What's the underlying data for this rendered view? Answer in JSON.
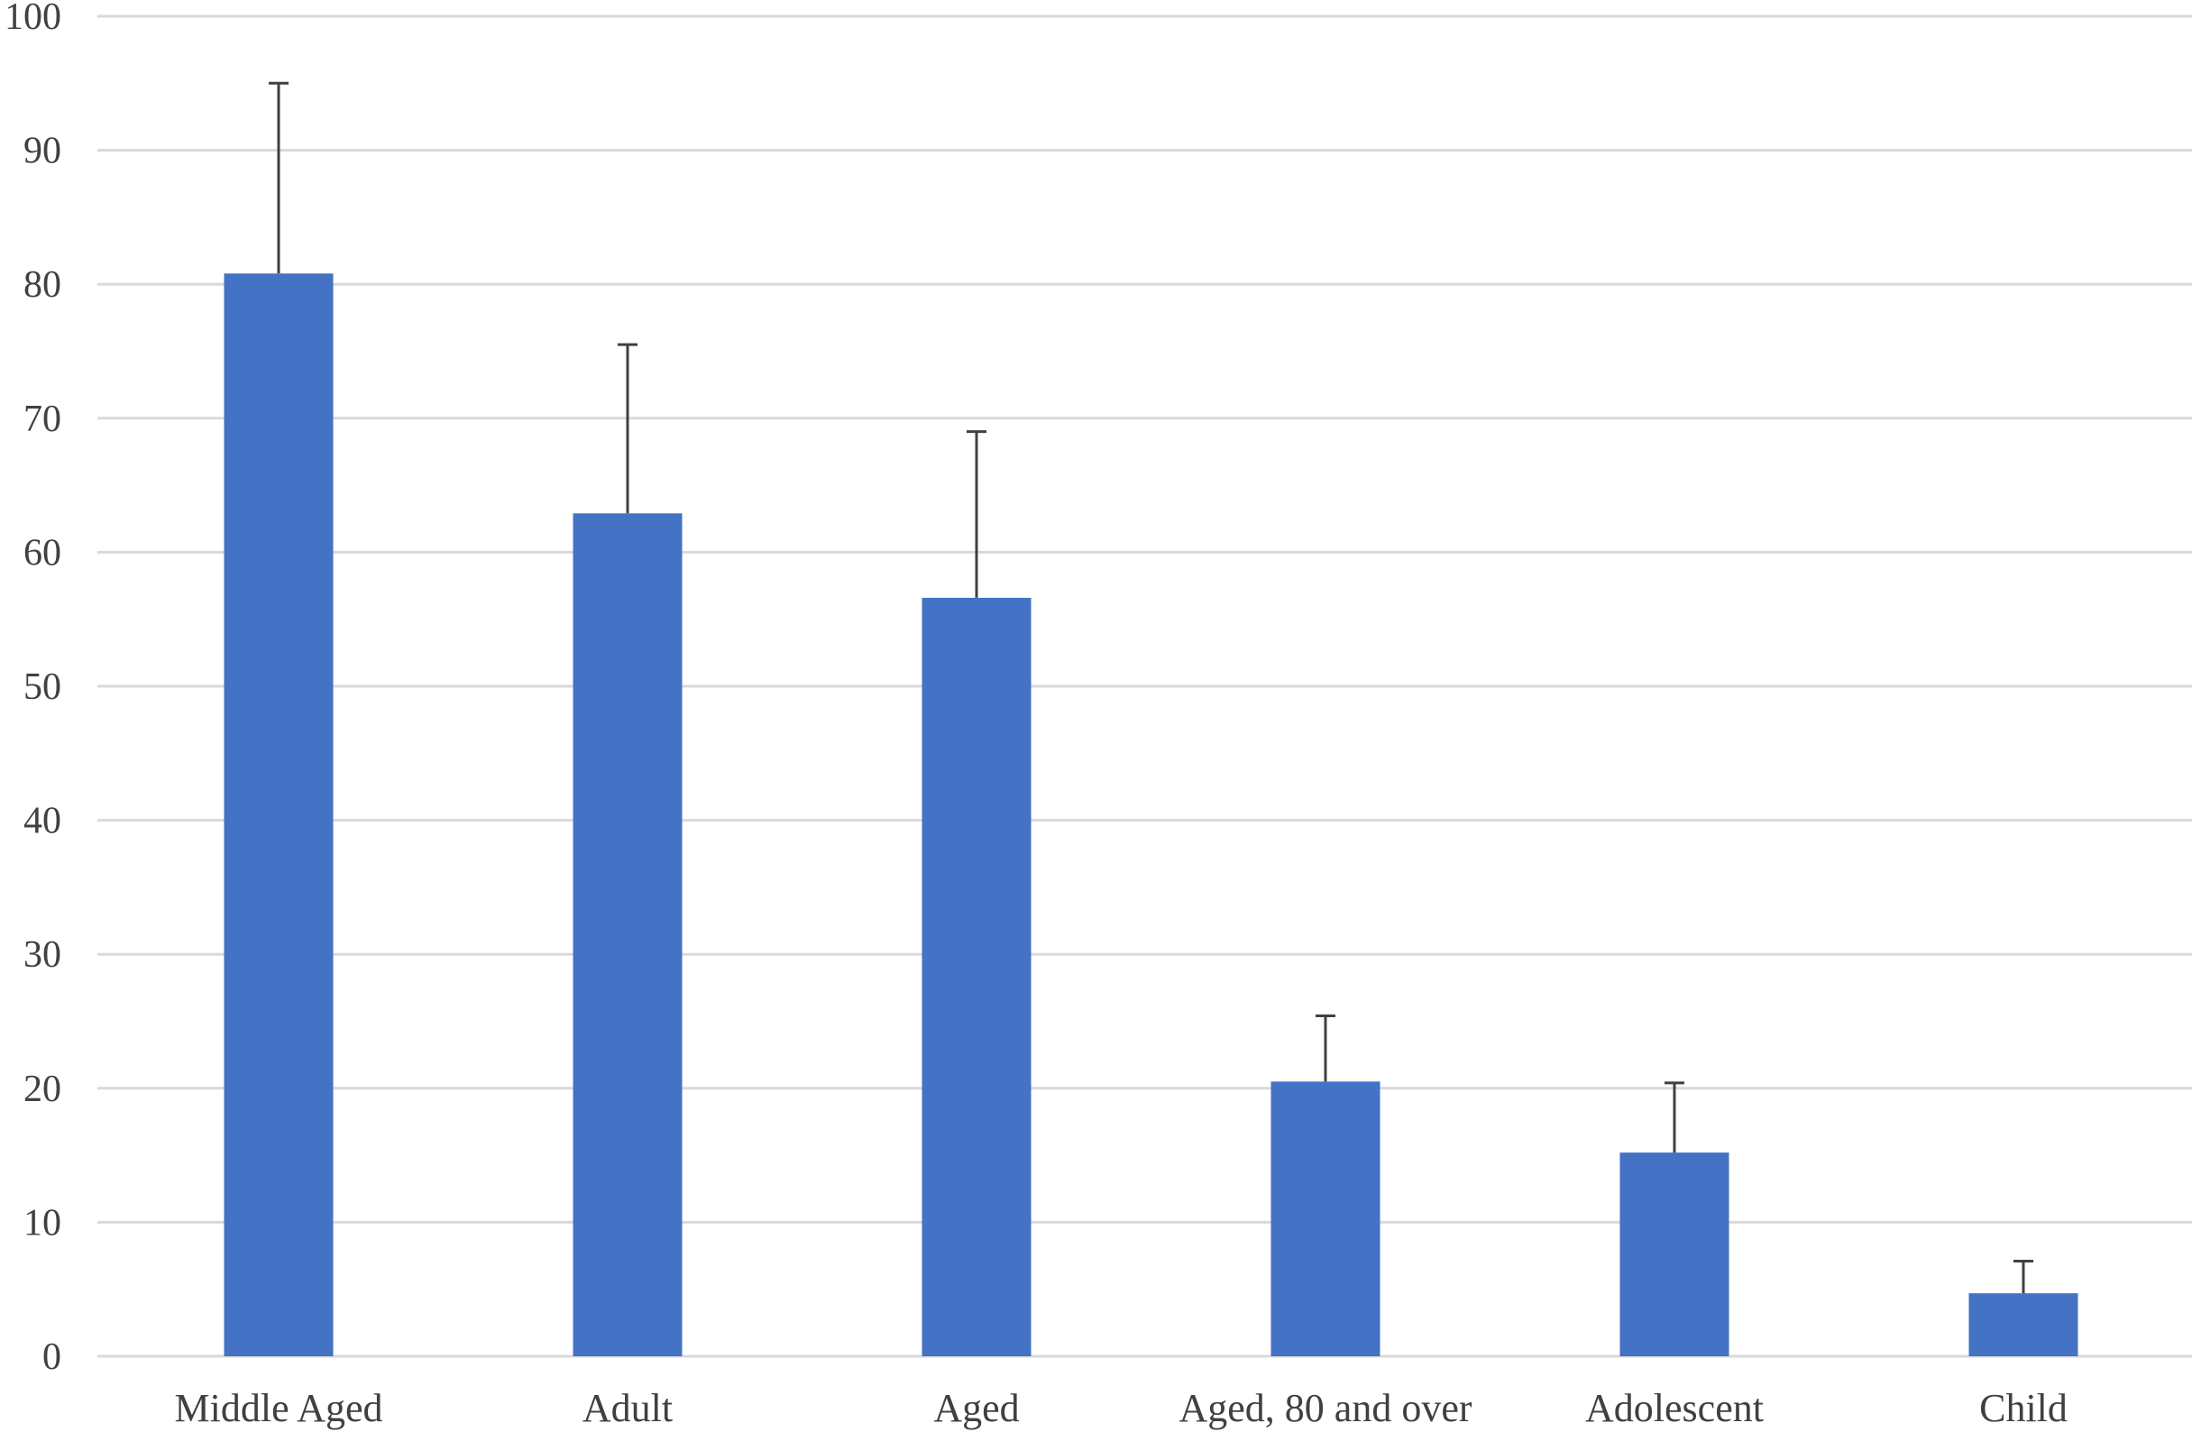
{
  "chart_data": {
    "type": "bar",
    "title": "",
    "xlabel": "",
    "ylabel": "",
    "categories": [
      "Middle Aged",
      "Adult",
      "Aged",
      "Aged, 80 and over",
      "Adolescent",
      "Child"
    ],
    "values": [
      80.8,
      62.9,
      56.6,
      20.5,
      15.2,
      4.7
    ],
    "error_upper": [
      14.2,
      12.6,
      12.4,
      4.9,
      5.2,
      2.4
    ],
    "ylim": [
      0,
      100
    ],
    "yticks": [
      0,
      10,
      20,
      30,
      40,
      50,
      60,
      70,
      80,
      90,
      100
    ],
    "grid": true,
    "legend": "none",
    "colors": {
      "bar": "#4472C4",
      "error_bar": "#404040",
      "grid": "#D9D9D9",
      "text": "#404040"
    }
  }
}
